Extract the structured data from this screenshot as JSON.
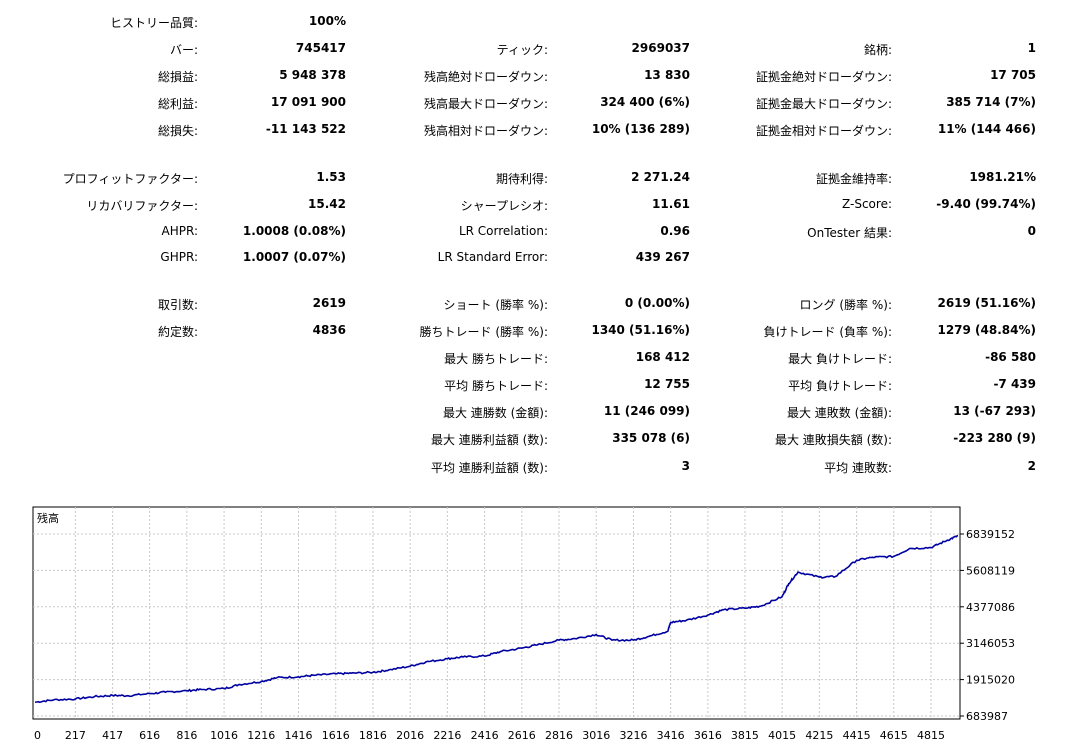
{
  "report": {
    "c1": [
      {
        "label": "ヒストリー品質:",
        "value": "100%"
      },
      {
        "label": "バー:",
        "value": "745417"
      },
      {
        "label": "総損益:",
        "value": "5 948 378"
      },
      {
        "label": "総利益:",
        "value": "17 091 900"
      },
      {
        "label": "総損失:",
        "value": "-11 143 522"
      },
      {
        "label": "プロフィットファクター:",
        "value": "1.53"
      },
      {
        "label": "リカバリファクター:",
        "value": "15.42"
      },
      {
        "label": "AHPR:",
        "value": "1.0008 (0.08%)"
      },
      {
        "label": "GHPR:",
        "value": "1.0007 (0.07%)"
      },
      {
        "label": "取引数:",
        "value": "2619"
      },
      {
        "label": "約定数:",
        "value": "4836"
      }
    ],
    "c2": [
      {
        "label": "ティック:",
        "value": "2969037"
      },
      {
        "label": "残高絶対ドローダウン:",
        "value": "13 830"
      },
      {
        "label": "残高最大ドローダウン:",
        "value": "324 400 (6%)"
      },
      {
        "label": "残高相対ドローダウン:",
        "value": "10% (136 289)"
      },
      {
        "label": "期待利得:",
        "value": "2 271.24"
      },
      {
        "label": "シャープレシオ:",
        "value": "11.61"
      },
      {
        "label": "LR Correlation:",
        "value": "0.96"
      },
      {
        "label": "LR Standard Error:",
        "value": "439 267"
      },
      {
        "label": "ショート (勝率 %):",
        "value": "0 (0.00%)"
      },
      {
        "label": "勝ちトレード (勝率 %):",
        "value": "1340 (51.16%)"
      },
      {
        "label": "最大 勝ちトレード:",
        "value": "168 412"
      },
      {
        "label": "平均 勝ちトレード:",
        "value": "12 755"
      },
      {
        "label": "最大 連勝数 (金額):",
        "value": "11 (246 099)"
      },
      {
        "label": "最大 連勝利益額 (数):",
        "value": "335 078 (6)"
      },
      {
        "label": "平均 連勝利益額 (数):",
        "value": "3"
      }
    ],
    "c3": [
      {
        "label": "銘柄:",
        "value": "1"
      },
      {
        "label": "証拠金絶対ドローダウン:",
        "value": "17 705"
      },
      {
        "label": "証拠金最大ドローダウン:",
        "value": "385 714 (7%)"
      },
      {
        "label": "証拠金相対ドローダウン:",
        "value": "11% (144 466)"
      },
      {
        "label": "証拠金維持率:",
        "value": "1981.21%"
      },
      {
        "label": "Z-Score:",
        "value": "-9.40 (99.74%)"
      },
      {
        "label": "OnTester 結果:",
        "value": "0"
      },
      {
        "label": "ロング (勝率 %):",
        "value": "2619 (51.16%)"
      },
      {
        "label": "負けトレード (負率 %):",
        "value": "1279 (48.84%)"
      },
      {
        "label": "最大 負けトレード:",
        "value": "-86 580"
      },
      {
        "label": "平均 負けトレード:",
        "value": "-7 439"
      },
      {
        "label": "最大 連敗数 (金額):",
        "value": "13 (-67 293)"
      },
      {
        "label": "最大 連敗損失額 (数):",
        "value": "-223 280 (9)"
      },
      {
        "label": "平均 連敗数:",
        "value": "2"
      }
    ]
  },
  "chart_data": {
    "type": "line",
    "title": "残高",
    "xlabel": "",
    "ylabel": "",
    "x_ticks": [
      "0",
      "217",
      "417",
      "616",
      "816",
      "1016",
      "1216",
      "1416",
      "1616",
      "1816",
      "2016",
      "2216",
      "2416",
      "2616",
      "2816",
      "3016",
      "3216",
      "3416",
      "3616",
      "3815",
      "4015",
      "4215",
      "4415",
      "4615",
      "4815"
    ],
    "y_ticks": [
      "683987",
      "1915020",
      "3146053",
      "4377086",
      "5608119",
      "6839152"
    ],
    "xlim": [
      0,
      4960
    ],
    "ylim": [
      683987,
      6839152
    ],
    "grid": true,
    "line_color": "#0000a0",
    "series": [
      {
        "x": [
          0,
          100,
          217,
          320,
          417,
          500,
          616,
          700,
          816,
          900,
          1016,
          1100,
          1216,
          1300,
          1416,
          1500,
          1616,
          1700,
          1816,
          1900,
          2016,
          2100,
          2216,
          2300,
          2416,
          2500,
          2616,
          2700,
          2816,
          2900,
          3016,
          3100,
          3216,
          3300,
          3400,
          3416,
          3500,
          3616,
          3700,
          3815,
          3900,
          4015,
          4050,
          4100,
          4215,
          4300,
          4415,
          4500,
          4615,
          4700,
          4815,
          4900,
          4960
        ],
        "y": [
          1150000,
          1230000,
          1260000,
          1340000,
          1380000,
          1370000,
          1440000,
          1490000,
          1540000,
          1580000,
          1610000,
          1750000,
          1850000,
          1980000,
          2010000,
          2060000,
          2110000,
          2130000,
          2160000,
          2240000,
          2370000,
          2510000,
          2620000,
          2680000,
          2710000,
          2860000,
          2980000,
          3090000,
          3250000,
          3300000,
          3440000,
          3250000,
          3250000,
          3380000,
          3550000,
          3850000,
          3920000,
          4100000,
          4280000,
          4330000,
          4400000,
          4720000,
          5160000,
          5550000,
          5380000,
          5400000,
          5950000,
          6050000,
          6080000,
          6350000,
          6380000,
          6620000,
          6780000
        ]
      }
    ]
  }
}
